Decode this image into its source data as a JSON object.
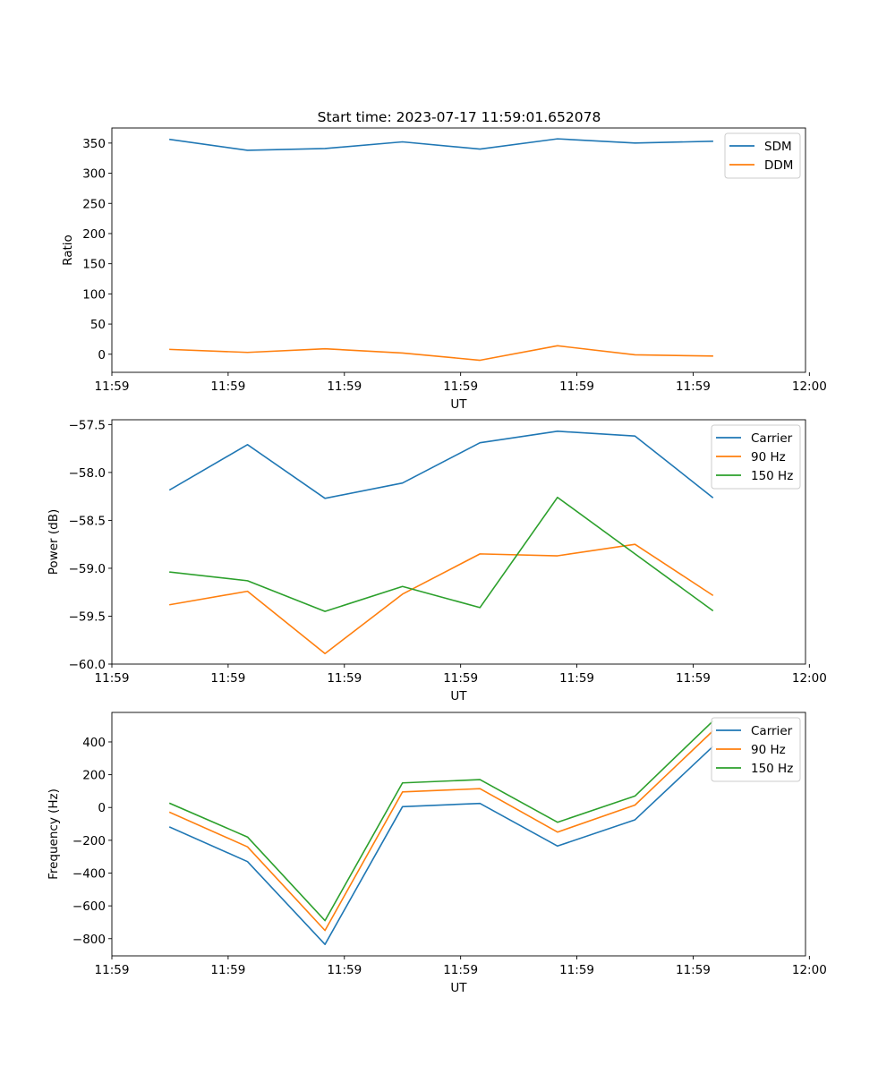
{
  "figure_title": "Start time: 2023-07-17 11:59:01.652078",
  "colors": {
    "blue": "#1f77b4",
    "orange": "#ff7f0e",
    "green": "#2ca02c"
  },
  "chart_data": [
    {
      "type": "line",
      "title": "Start time: 2023-07-17 11:59:01.652078",
      "xlabel": "UT",
      "ylabel": "Ratio",
      "x": [
        1,
        2,
        3,
        4,
        5,
        6,
        7,
        8
      ],
      "xlim": [
        0.25,
        9.2
      ],
      "xticks": [
        0.25,
        1.75,
        3.25,
        4.75,
        6.25,
        7.75,
        9.25
      ],
      "xtick_labels": [
        "11:59",
        "11:59",
        "11:59",
        "11:59",
        "11:59",
        "11:59",
        "12:00"
      ],
      "ylim": [
        -30,
        375
      ],
      "yticks": [
        0,
        50,
        100,
        150,
        200,
        250,
        300,
        350
      ],
      "ytick_labels": [
        "0",
        "50",
        "100",
        "150",
        "200",
        "250",
        "300",
        "350"
      ],
      "legend_loc": "upper-right",
      "series": [
        {
          "name": "SDM",
          "color": "#1f77b4",
          "values": [
            356,
            338,
            341,
            352,
            340,
            357,
            350,
            353
          ]
        },
        {
          "name": "DDM",
          "color": "#ff7f0e",
          "values": [
            8,
            3,
            9,
            2,
            -10,
            14,
            -1,
            -3
          ]
        }
      ]
    },
    {
      "type": "line",
      "xlabel": "UT",
      "ylabel": "Power (dB)",
      "x": [
        1,
        2,
        3,
        4,
        5,
        6,
        7,
        8
      ],
      "xlim": [
        0.25,
        9.2
      ],
      "xticks": [
        0.25,
        1.75,
        3.25,
        4.75,
        6.25,
        7.75,
        9.25
      ],
      "xtick_labels": [
        "11:59",
        "11:59",
        "11:59",
        "11:59",
        "11:59",
        "11:59",
        "12:00"
      ],
      "ylim": [
        -60.0,
        -57.45
      ],
      "yticks": [
        -60.0,
        -59.5,
        -59.0,
        -58.5,
        -58.0,
        -57.5
      ],
      "ytick_labels": [
        "−60.0",
        "−59.5",
        "−59.0",
        "−58.5",
        "−58.0",
        "−57.5"
      ],
      "legend_loc": "upper-right",
      "series": [
        {
          "name": "Carrier",
          "color": "#1f77b4",
          "values": [
            -58.18,
            -57.71,
            -58.27,
            -58.11,
            -57.69,
            -57.57,
            -57.62,
            -58.26
          ]
        },
        {
          "name": "90 Hz",
          "color": "#ff7f0e",
          "values": [
            -59.38,
            -59.24,
            -59.89,
            -59.27,
            -58.85,
            -58.87,
            -58.75,
            -59.28
          ]
        },
        {
          "name": "150 Hz",
          "color": "#2ca02c",
          "values": [
            -59.04,
            -59.13,
            -59.45,
            -59.19,
            -59.41,
            -58.26,
            -58.85,
            -59.44
          ]
        }
      ]
    },
    {
      "type": "line",
      "xlabel": "UT",
      "ylabel": "Frequency (Hz)",
      "x": [
        1,
        2,
        3,
        4,
        5,
        6,
        7,
        8
      ],
      "xlim": [
        0.25,
        9.2
      ],
      "xticks": [
        0.25,
        1.75,
        3.25,
        4.75,
        6.25,
        7.75,
        9.25
      ],
      "xtick_labels": [
        "11:59",
        "11:59",
        "11:59",
        "11:59",
        "11:59",
        "11:59",
        "12:00"
      ],
      "ylim": [
        -905,
        580
      ],
      "yticks": [
        -800,
        -600,
        -400,
        -200,
        0,
        200,
        400
      ],
      "ytick_labels": [
        "−800",
        "−600",
        "−400",
        "−200",
        "0",
        "200",
        "400"
      ],
      "legend_loc": "upper-right",
      "series": [
        {
          "name": "Carrier",
          "color": "#1f77b4",
          "values": [
            -120,
            -330,
            -835,
            5,
            25,
            -235,
            -75,
            370
          ]
        },
        {
          "name": "90 Hz",
          "color": "#ff7f0e",
          "values": [
            -30,
            -240,
            -750,
            95,
            115,
            -150,
            15,
            465
          ]
        },
        {
          "name": "150 Hz",
          "color": "#2ca02c",
          "values": [
            25,
            -180,
            -690,
            150,
            170,
            -90,
            70,
            525
          ]
        }
      ]
    }
  ]
}
